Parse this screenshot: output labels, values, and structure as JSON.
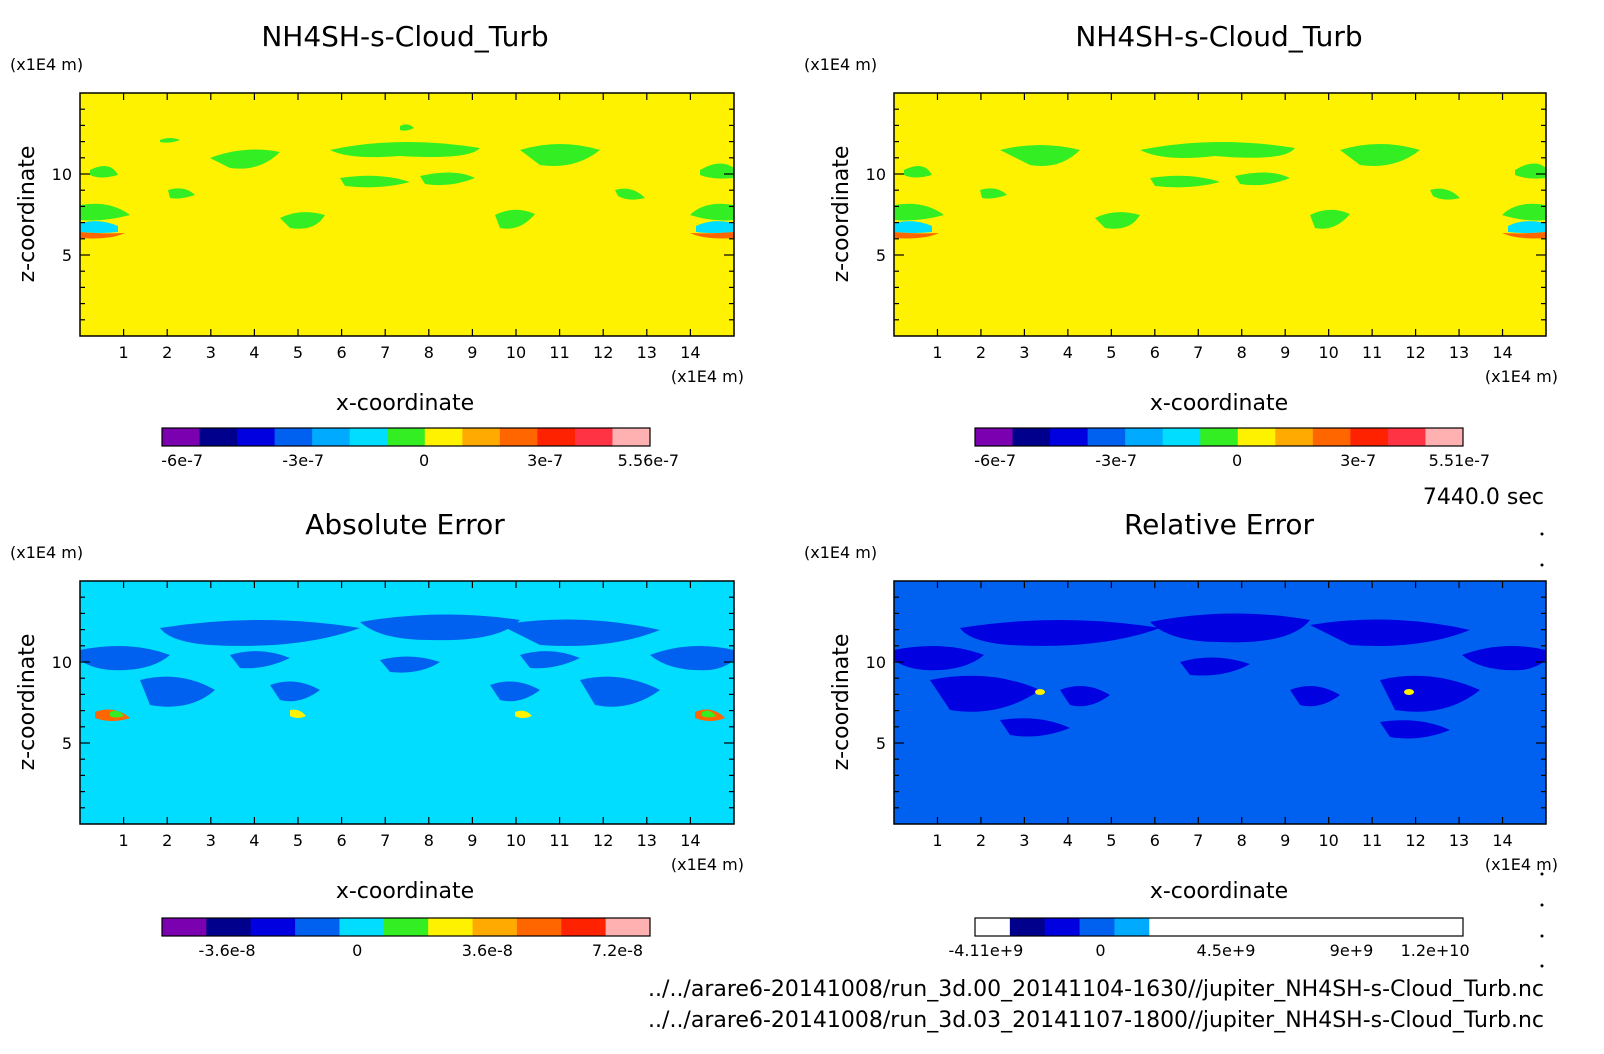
{
  "time_label": "7440.0 sec",
  "footer_lines": [
    "../../arare6-20141008/run_3d.00_20141104-1630//jupiter_NH4SH-s-Cloud_Turb.nc",
    "../../arare6-20141008/run_3d.03_20141107-1800//jupiter_NH4SH-s-Cloud_Turb.nc"
  ],
  "chart_data": [
    {
      "type": "heatmap",
      "title": "NH4SH-s-Cloud_Turb",
      "xlabel": "x-coordinate",
      "ylabel": "z-coordinate",
      "x_unit": "(x1E4 m)",
      "y_unit": "(x1E4 m)",
      "xlim": [
        0,
        15
      ],
      "ylim": [
        0,
        15
      ],
      "x_ticks": [
        "1",
        "2",
        "3",
        "4",
        "5",
        "6",
        "7",
        "8",
        "9",
        "10",
        "11",
        "12",
        "13",
        "14"
      ],
      "y_ticks": [
        "5",
        "10"
      ],
      "background_color": "#fff200",
      "colorbar": {
        "tick_labels": [
          "-6e-7",
          "-3e-7",
          "0",
          "3e-7",
          "5.56e-7"
        ],
        "tick_values": [
          -6e-07,
          -3e-07,
          0,
          3e-07,
          5.56e-07
        ],
        "range": [
          -6.5e-07,
          5.6e-07
        ],
        "colors": [
          "#7a00b0",
          "#00008c",
          "#0000e0",
          "#0060f0",
          "#00aaff",
          "#00ddff",
          "#33ee22",
          "#fff200",
          "#ffaa00",
          "#ff6600",
          "#ff2200",
          "#ff3344",
          "#ffb0b0"
        ]
      }
    },
    {
      "type": "heatmap",
      "title": "NH4SH-s-Cloud_Turb",
      "xlabel": "x-coordinate",
      "ylabel": "z-coordinate",
      "x_unit": "(x1E4 m)",
      "y_unit": "(x1E4 m)",
      "xlim": [
        0,
        15
      ],
      "ylim": [
        0,
        15
      ],
      "x_ticks": [
        "1",
        "2",
        "3",
        "4",
        "5",
        "6",
        "7",
        "8",
        "9",
        "10",
        "11",
        "12",
        "13",
        "14"
      ],
      "y_ticks": [
        "5",
        "10"
      ],
      "background_color": "#fff200",
      "colorbar": {
        "tick_labels": [
          "-6e-7",
          "-3e-7",
          "0",
          "3e-7",
          "5.51e-7"
        ],
        "tick_values": [
          -6e-07,
          -3e-07,
          0,
          3e-07,
          5.51e-07
        ],
        "range": [
          -6.5e-07,
          5.6e-07
        ],
        "colors": [
          "#7a00b0",
          "#00008c",
          "#0000e0",
          "#0060f0",
          "#00aaff",
          "#00ddff",
          "#33ee22",
          "#fff200",
          "#ffaa00",
          "#ff6600",
          "#ff2200",
          "#ff3344",
          "#ffb0b0"
        ]
      }
    },
    {
      "type": "heatmap",
      "title": "Absolute Error",
      "xlabel": "x-coordinate",
      "ylabel": "z-coordinate",
      "x_unit": "(x1E4 m)",
      "y_unit": "(x1E4 m)",
      "xlim": [
        0,
        15
      ],
      "ylim": [
        0,
        15
      ],
      "x_ticks": [
        "1",
        "2",
        "3",
        "4",
        "5",
        "6",
        "7",
        "8",
        "9",
        "10",
        "11",
        "12",
        "13",
        "14"
      ],
      "y_ticks": [
        "5",
        "10"
      ],
      "background_color": "#00ddff",
      "colorbar": {
        "tick_labels": [
          "-3.6e-8",
          "0",
          "3.6e-8",
          "7.2e-8"
        ],
        "tick_values": [
          -3.6e-08,
          0,
          3.6e-08,
          7.2e-08
        ],
        "range": [
          -5.4e-08,
          8.1e-08
        ],
        "colors": [
          "#7a00b0",
          "#00008c",
          "#0000e0",
          "#0060f0",
          "#00ddff",
          "#33ee22",
          "#fff200",
          "#ffaa00",
          "#ff6600",
          "#ff2200",
          "#ffb0b0"
        ]
      }
    },
    {
      "type": "heatmap",
      "title": "Relative Error",
      "xlabel": "x-coordinate",
      "ylabel": "z-coordinate",
      "x_unit": "(x1E4 m)",
      "y_unit": "(x1E4 m)",
      "xlim": [
        0,
        15
      ],
      "ylim": [
        0,
        15
      ],
      "x_ticks": [
        "1",
        "2",
        "3",
        "4",
        "5",
        "6",
        "7",
        "8",
        "9",
        "10",
        "11",
        "12",
        "13",
        "14"
      ],
      "y_ticks": [
        "5",
        "10"
      ],
      "background_color": "#0060f0",
      "colorbar": {
        "tick_labels": [
          "-4.11e+9",
          "0",
          "4.5e+9",
          "9e+9",
          "1.2e+10"
        ],
        "tick_values": [
          -4110000000.0,
          0,
          4500000000.0,
          9000000000.0,
          12000000000.0
        ],
        "range": [
          -4500000000.0,
          13000000000.0
        ],
        "colors": [
          "#ffffff",
          "#00008c",
          "#0000e0",
          "#0060f0",
          "#00aaff",
          "#ffffff",
          "#ffffff",
          "#ffffff",
          "#ffffff",
          "#ffffff",
          "#ffffff",
          "#ffffff",
          "#ffffff",
          "#ffffff"
        ]
      }
    }
  ]
}
